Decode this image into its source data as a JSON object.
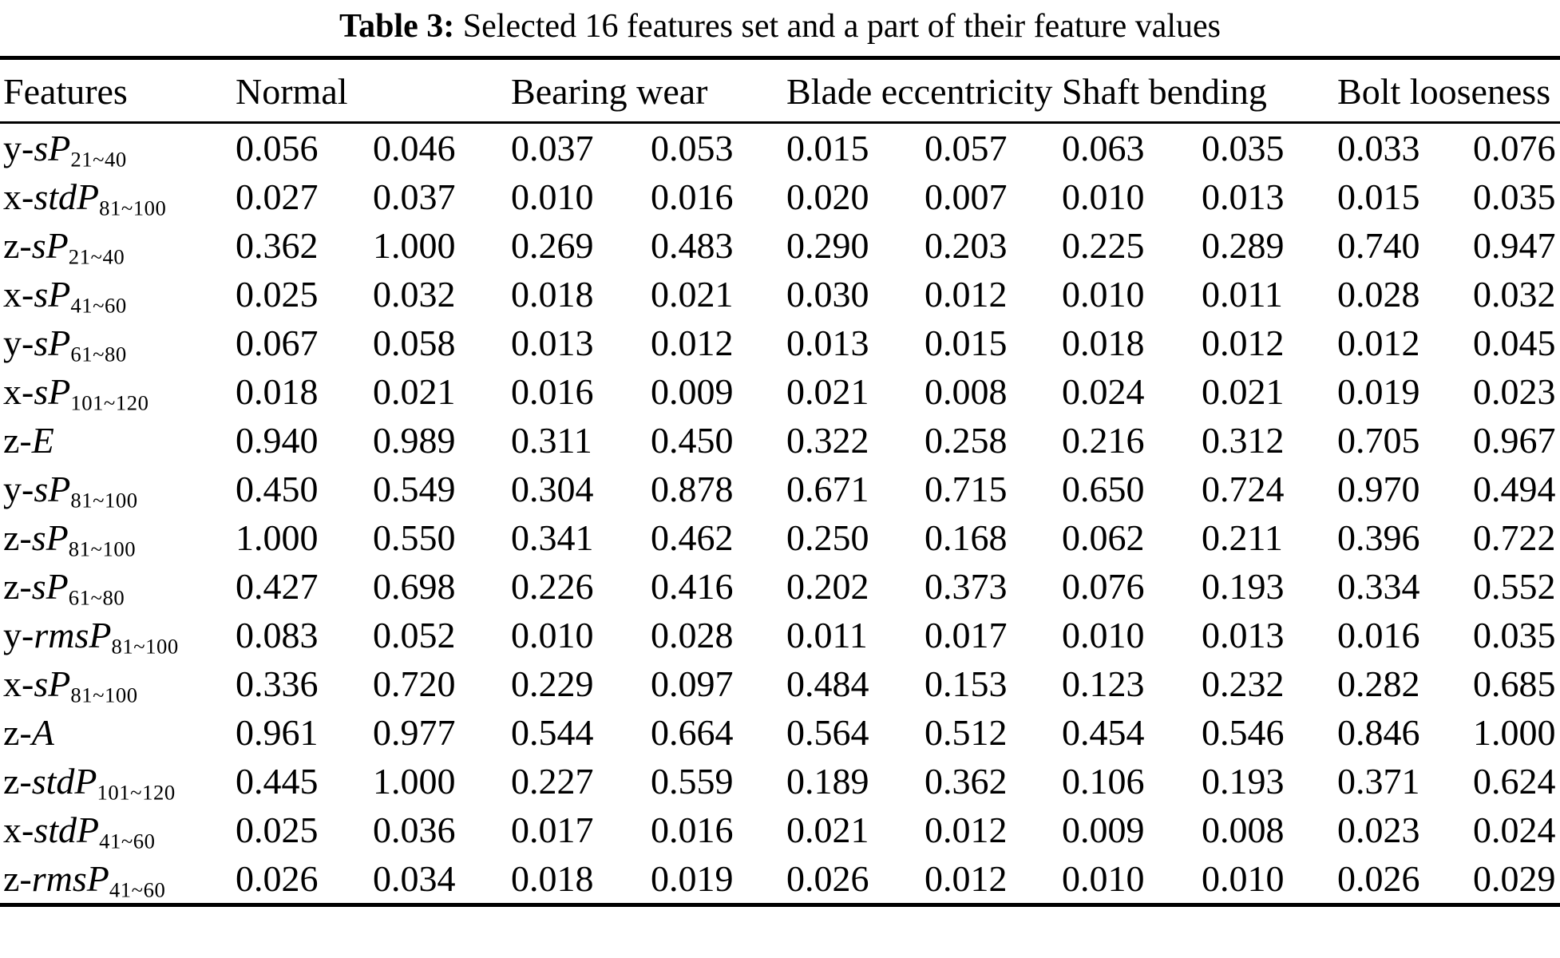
{
  "colors": {
    "background": "#ffffff",
    "text": "#000000",
    "rule": "#000000"
  },
  "caption": {
    "label": "Table 3:",
    "text": " Selected 16 features set and a part of their feature values"
  },
  "table": {
    "feature_col_header": "Features",
    "groups": [
      {
        "label": "Normal"
      },
      {
        "label": "Bearing wear"
      },
      {
        "label": "Blade eccentricity"
      },
      {
        "label": "Shaft bending"
      },
      {
        "label": "Bolt looseness"
      }
    ],
    "rows": [
      {
        "feature": {
          "prefix": "y-",
          "italic": "sP",
          "sub": "21~40"
        },
        "values": [
          "0.056",
          "0.046",
          "0.037",
          "0.053",
          "0.015",
          "0.057",
          "0.063",
          "0.035",
          "0.033",
          "0.076"
        ]
      },
      {
        "feature": {
          "prefix": "x-",
          "italic": "stdP",
          "sub": "81~100"
        },
        "values": [
          "0.027",
          "0.037",
          "0.010",
          "0.016",
          "0.020",
          "0.007",
          "0.010",
          "0.013",
          "0.015",
          "0.035"
        ]
      },
      {
        "feature": {
          "prefix": "z-",
          "italic": "sP",
          "sub": "21~40"
        },
        "values": [
          "0.362",
          "1.000",
          "0.269",
          "0.483",
          "0.290",
          "0.203",
          "0.225",
          "0.289",
          "0.740",
          "0.947"
        ]
      },
      {
        "feature": {
          "prefix": "x-",
          "italic": "sP",
          "sub": "41~60"
        },
        "values": [
          "0.025",
          "0.032",
          "0.018",
          "0.021",
          "0.030",
          "0.012",
          "0.010",
          "0.011",
          "0.028",
          "0.032"
        ]
      },
      {
        "feature": {
          "prefix": "y-",
          "italic": "sP",
          "sub": "61~80"
        },
        "values": [
          "0.067",
          "0.058",
          "0.013",
          "0.012",
          "0.013",
          "0.015",
          "0.018",
          "0.012",
          "0.012",
          "0.045"
        ]
      },
      {
        "feature": {
          "prefix": "x-",
          "italic": "sP",
          "sub": "101~120"
        },
        "values": [
          "0.018",
          "0.021",
          "0.016",
          "0.009",
          "0.021",
          "0.008",
          "0.024",
          "0.021",
          "0.019",
          "0.023"
        ]
      },
      {
        "feature": {
          "prefix": "z-",
          "italic": "E",
          "sub": ""
        },
        "values": [
          "0.940",
          "0.989",
          "0.311",
          "0.450",
          "0.322",
          "0.258",
          "0.216",
          "0.312",
          "0.705",
          "0.967"
        ]
      },
      {
        "feature": {
          "prefix": "y-",
          "italic": "sP",
          "sub": "81~100"
        },
        "values": [
          "0.450",
          "0.549",
          "0.304",
          "0.878",
          "0.671",
          "0.715",
          "0.650",
          "0.724",
          "0.970",
          "0.494"
        ]
      },
      {
        "feature": {
          "prefix": "z-",
          "italic": "sP",
          "sub": "81~100"
        },
        "values": [
          "1.000",
          "0.550",
          "0.341",
          "0.462",
          "0.250",
          "0.168",
          "0.062",
          "0.211",
          "0.396",
          "0.722"
        ]
      },
      {
        "feature": {
          "prefix": "z-",
          "italic": "sP",
          "sub": "61~80"
        },
        "values": [
          "0.427",
          "0.698",
          "0.226",
          "0.416",
          "0.202",
          "0.373",
          "0.076",
          "0.193",
          "0.334",
          "0.552"
        ]
      },
      {
        "feature": {
          "prefix": "y-",
          "italic": "rmsP",
          "sub": "81~100"
        },
        "values": [
          "0.083",
          "0.052",
          "0.010",
          "0.028",
          "0.011",
          "0.017",
          "0.010",
          "0.013",
          "0.016",
          "0.035"
        ]
      },
      {
        "feature": {
          "prefix": "x-",
          "italic": "sP",
          "sub": "81~100"
        },
        "values": [
          "0.336",
          "0.720",
          "0.229",
          "0.097",
          "0.484",
          "0.153",
          "0.123",
          "0.232",
          "0.282",
          "0.685"
        ]
      },
      {
        "feature": {
          "prefix": "z-",
          "italic": "A",
          "sub": ""
        },
        "values": [
          "0.961",
          "0.977",
          "0.544",
          "0.664",
          "0.564",
          "0.512",
          "0.454",
          "0.546",
          "0.846",
          "1.000"
        ]
      },
      {
        "feature": {
          "prefix": "z-",
          "italic": "stdP",
          "sub": "101~120"
        },
        "values": [
          "0.445",
          "1.000",
          "0.227",
          "0.559",
          "0.189",
          "0.362",
          "0.106",
          "0.193",
          "0.371",
          "0.624"
        ]
      },
      {
        "feature": {
          "prefix": "x-",
          "italic": "stdP",
          "sub": "41~60"
        },
        "values": [
          "0.025",
          "0.036",
          "0.017",
          "0.016",
          "0.021",
          "0.012",
          "0.009",
          "0.008",
          "0.023",
          "0.024"
        ]
      },
      {
        "feature": {
          "prefix": "z-",
          "italic": "rmsP",
          "sub": "41~60"
        },
        "values": [
          "0.026",
          "0.034",
          "0.018",
          "0.019",
          "0.026",
          "0.012",
          "0.010",
          "0.010",
          "0.026",
          "0.029"
        ]
      }
    ]
  }
}
